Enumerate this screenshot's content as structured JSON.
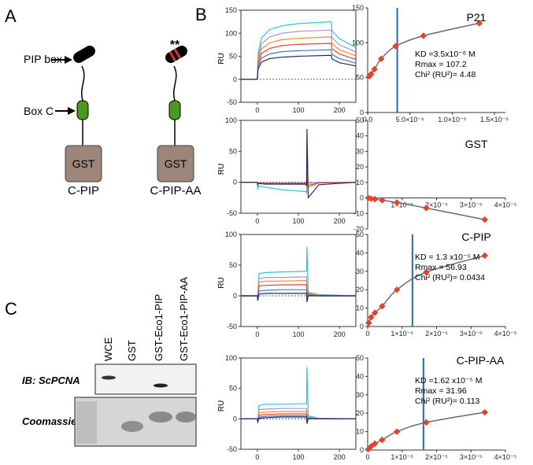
{
  "panel_a": {
    "label": "A",
    "pip_box": "PIP box",
    "box_c": "Box C",
    "constructs": [
      {
        "tag": "GST",
        "name": "C-PIP"
      },
      {
        "tag": "GST",
        "name": "C-PIP-AA",
        "mutation": "**"
      }
    ]
  },
  "panel_b": {
    "label": "B"
  },
  "panel_c": {
    "label": "C",
    "lanes": [
      "WCE",
      "GST",
      "GST-Eco1-PIP",
      "GST-Eco1-PIP-AA"
    ],
    "rows": [
      "IB: ScPCNA",
      "Coomassie"
    ]
  },
  "chart_data": [
    {
      "type": "line",
      "ylabel": "RU",
      "zero_line": true,
      "x": [
        -40,
        0,
        2,
        10,
        30,
        60,
        100,
        180,
        182,
        200,
        240
      ],
      "xlim": [
        -40,
        240
      ],
      "xticks": [
        0,
        100,
        200
      ],
      "ylim": [
        -50,
        150
      ],
      "yticks": [
        -50,
        0,
        50,
        100,
        150
      ],
      "series": [
        {
          "color": "#2ec4da",
          "values": [
            0,
            0,
            56,
            90,
            108,
            116,
            121,
            125,
            105,
            88,
            69
          ]
        },
        {
          "color": "#a493d6",
          "values": [
            0,
            0,
            48,
            77,
            92,
            100,
            104,
            107,
            90,
            75,
            59
          ]
        },
        {
          "color": "#f08a2c",
          "values": [
            0,
            0,
            41,
            66,
            79,
            86,
            89,
            92,
            77,
            64,
            51
          ]
        },
        {
          "color": "#e0452c",
          "values": [
            0,
            0,
            35,
            56,
            67,
            73,
            76,
            78,
            66,
            55,
            43
          ]
        },
        {
          "color": "#3c7ec2",
          "values": [
            0,
            0,
            29,
            46,
            55,
            60,
            62,
            64,
            54,
            45,
            35
          ]
        },
        {
          "color": "#1c2a6b",
          "values": [
            0,
            0,
            23,
            37,
            45,
            48,
            50,
            52,
            44,
            36,
            29
          ]
        }
      ]
    },
    {
      "type": "scatter",
      "title": "P21",
      "color": "#e0452c",
      "line_color": "#6b6b6b",
      "kd_color": "#1f6fb0",
      "kd_line": 3.5e-06,
      "annotations": [
        "KD =3.5x10⁻⁶ M",
        "Rmax  = 107.2",
        "Chi² (RU²)= 4.48"
      ],
      "x": [
        2e-07,
        4e-07,
        8e-07,
        1.6e-06,
        3.3e-06,
        6.6e-06,
        1.32e-05
      ],
      "values": [
        52,
        55,
        62,
        77,
        95,
        110,
        128
      ],
      "xlim": [
        0,
        1.63e-05
      ],
      "ylim": [
        0,
        150
      ],
      "yticks": [
        0,
        50,
        100,
        150
      ],
      "xticks": [
        {
          "value": 0,
          "label": "0.0"
        },
        {
          "value": 5e-06,
          "label": "5.0×10⁻⁶"
        },
        {
          "value": 1e-05,
          "label": "1.0×10⁻⁵"
        },
        {
          "value": 1.5e-05,
          "label": "1.5×10⁻⁵"
        }
      ]
    },
    {
      "type": "line",
      "ylabel": "RU",
      "zero_line": true,
      "x": [
        -40,
        0,
        1,
        3,
        20,
        60,
        118,
        120,
        121,
        124,
        150,
        240
      ],
      "xlim": [
        -40,
        240
      ],
      "xticks": [
        0,
        100,
        200
      ],
      "ylim": [
        -50,
        100
      ],
      "yticks": [
        -50,
        0,
        50,
        100
      ],
      "series": [
        {
          "color": "#2ec4da",
          "values": [
            0,
            0,
            -12,
            -6,
            -8,
            -12,
            -15,
            -18,
            -5,
            -2,
            0,
            0
          ]
        },
        {
          "color": "#a493d6",
          "values": [
            0,
            0,
            -5,
            -1,
            -1,
            -1,
            -1,
            -2,
            20,
            -1,
            0,
            0
          ]
        },
        {
          "color": "#f08a2c",
          "values": [
            0,
            0,
            -3,
            -2,
            -2,
            -3,
            -3,
            -5,
            10,
            -8,
            -1,
            0
          ]
        },
        {
          "color": "#e0452c",
          "values": [
            0,
            0,
            -3,
            -1,
            -2,
            -2,
            -2,
            -3,
            5,
            -5,
            -1,
            0
          ]
        },
        {
          "color": "#1c2a6b",
          "values": [
            0,
            0,
            -4,
            -2,
            -3,
            -3,
            -3,
            -5,
            86,
            -25,
            -4,
            0
          ]
        }
      ]
    },
    {
      "type": "scatter",
      "title": "GST",
      "color": "#e0452c",
      "line_color": "#6b6b6b",
      "x": [
        2e-07,
        1e-06,
        2.1e-06,
        4.2e-06,
        8.5e-06,
        1.7e-05,
        3.4e-05
      ],
      "values": [
        0,
        -0.5,
        -0.8,
        -1.5,
        -3,
        -6.5,
        -14
      ],
      "xlim": [
        0,
        4e-05
      ],
      "ylim": [
        -20,
        50
      ],
      "yticks": [
        -20,
        -10,
        0,
        10,
        20,
        30,
        40,
        50
      ],
      "xticks": [
        {
          "value": 1e-05,
          "label": "1×10⁻⁵"
        },
        {
          "value": 2e-05,
          "label": "2×10⁻⁵"
        },
        {
          "value": 3e-05,
          "label": "3×10⁻⁵"
        },
        {
          "value": 4e-05,
          "label": "4×10⁻⁵"
        }
      ]
    },
    {
      "type": "line",
      "ylabel": "RU",
      "zero_line": true,
      "x": [
        -40,
        0,
        1,
        4,
        20,
        60,
        118,
        120,
        121,
        124,
        150,
        240
      ],
      "xlim": [
        -40,
        240
      ],
      "xticks": [
        0,
        100,
        200
      ],
      "ylim": [
        -50,
        100
      ],
      "yticks": [
        -50,
        0,
        50,
        100
      ],
      "series": [
        {
          "color": "#2ec4da",
          "values": [
            0,
            0,
            -5,
            36,
            38,
            39,
            40,
            40,
            80,
            6,
            2,
            0
          ]
        },
        {
          "color": "#a493d6",
          "values": [
            0,
            0,
            -4,
            28,
            30,
            30,
            31,
            31,
            10,
            4,
            1,
            0
          ]
        },
        {
          "color": "#f08a2c",
          "values": [
            0,
            0,
            -3,
            22,
            24,
            24,
            25,
            25,
            8,
            3,
            1,
            0
          ]
        },
        {
          "color": "#e0452c",
          "values": [
            0,
            0,
            -3,
            16,
            17,
            18,
            18,
            18,
            6,
            2,
            0,
            0
          ]
        },
        {
          "color": "#3c7ec2",
          "values": [
            0,
            0,
            -2,
            8,
            9,
            10,
            10,
            10,
            3,
            1,
            0,
            0
          ]
        },
        {
          "color": "#1c2a6b",
          "values": [
            0,
            0,
            -8,
            3,
            4,
            4,
            4,
            4,
            -10,
            0,
            0,
            0
          ]
        }
      ]
    },
    {
      "type": "scatter",
      "title": "C-PIP",
      "color": "#e0452c",
      "line_color": "#6b6b6b",
      "kd_color": "#1f6fb0",
      "kd_line": 1.3e-05,
      "annotations": [
        "KD = 1.3 x10⁻⁵ M",
        "Rmax = 56.93",
        "Chi² (RU²)= 0.0434"
      ],
      "x": [
        3e-07,
        1e-06,
        2.1e-06,
        4.2e-06,
        8.5e-06,
        1.7e-05,
        3.4e-05
      ],
      "values": [
        2,
        5,
        7.5,
        11,
        20,
        29.5,
        38.5
      ],
      "xlim": [
        0,
        4e-05
      ],
      "ylim": [
        0,
        50
      ],
      "yticks": [
        0,
        10,
        20,
        30,
        40,
        50
      ],
      "xticks": [
        0,
        {
          "value": 1e-05,
          "label": "1×10⁻⁵"
        },
        {
          "value": 2e-05,
          "label": "2×10⁻⁵"
        },
        {
          "value": 3e-05,
          "label": "3×10⁻⁵"
        },
        {
          "value": 4e-05,
          "label": "4×10⁻⁵"
        }
      ]
    },
    {
      "type": "line",
      "ylabel": "RU",
      "zero_line": true,
      "x": [
        -40,
        0,
        1,
        4,
        20,
        60,
        118,
        120,
        121,
        124,
        150,
        240
      ],
      "xlim": [
        -40,
        240
      ],
      "xticks": [
        0,
        100,
        200
      ],
      "ylim": [
        -50,
        100
      ],
      "yticks": [
        -50,
        0,
        50,
        100
      ],
      "series": [
        {
          "color": "#2ec4da",
          "values": [
            0,
            0,
            -8,
            22,
            24,
            24,
            25,
            25,
            85,
            5,
            1,
            0
          ]
        },
        {
          "color": "#a493d6",
          "values": [
            0,
            0,
            -4,
            15,
            16,
            17,
            17,
            17,
            8,
            3,
            1,
            0
          ]
        },
        {
          "color": "#f08a2c",
          "values": [
            0,
            0,
            -3,
            10,
            11,
            12,
            12,
            12,
            5,
            2,
            0,
            0
          ]
        },
        {
          "color": "#e0452c",
          "values": [
            0,
            0,
            -3,
            6,
            7,
            8,
            8,
            8,
            3,
            1,
            0,
            0
          ]
        },
        {
          "color": "#3c7ec2",
          "values": [
            0,
            0,
            -2,
            3,
            4,
            5,
            5,
            5,
            2,
            1,
            0,
            0
          ]
        },
        {
          "color": "#1c2a6b",
          "values": [
            0,
            0,
            -6,
            1,
            2,
            3,
            3,
            3,
            -8,
            0,
            0,
            0
          ]
        }
      ]
    },
    {
      "type": "scatter",
      "title": "C-PIP-AA",
      "color": "#e0452c",
      "line_color": "#6b6b6b",
      "kd_color": "#1f6fb0",
      "kd_line": 1.62e-05,
      "annotations": [
        "KD =1.62 x10⁻⁵ M",
        "Rmax  = 31.96",
        "Chi² (RU²)= 0.113"
      ],
      "x": [
        2e-07,
        1e-06,
        2.1e-06,
        4.2e-06,
        8.5e-06,
        1.7e-05,
        3.4e-05
      ],
      "values": [
        0.5,
        2,
        3.5,
        5.5,
        10,
        15,
        20.5
      ],
      "xlim": [
        0,
        4e-05
      ],
      "ylim": [
        0,
        50
      ],
      "yticks": [
        0,
        10,
        20,
        30,
        40,
        50
      ],
      "xticks": [
        0,
        {
          "value": 1e-05,
          "label": "1×10⁻⁵"
        },
        {
          "value": 2e-05,
          "label": "2×10⁻⁵"
        },
        {
          "value": 3e-05,
          "label": "3×10⁻⁵"
        },
        {
          "value": 4e-05,
          "label": "4×10⁻⁵"
        }
      ]
    }
  ]
}
